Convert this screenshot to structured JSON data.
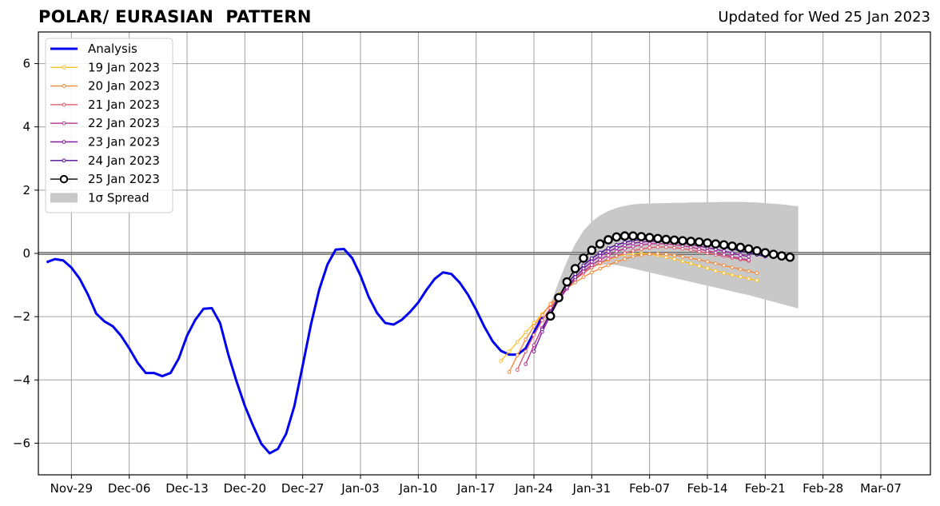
{
  "chart_data": {
    "type": "line",
    "title": "POLAR/ EURASIAN  PATTERN",
    "subtitle": "Updated for Wed 25 Jan 2023",
    "ylim": [
      -7,
      7
    ],
    "y_ticks": [
      -6,
      -4,
      -2,
      0,
      2,
      4,
      6
    ],
    "y_tick_labels": [
      "−6",
      "−4",
      "−2",
      "0",
      "2",
      "4",
      "6"
    ],
    "x_start": "2023-11-25",
    "x_end": "2024-03-13",
    "x_ticks": [
      {
        "date": "2022-11-29",
        "label": "Nov-29"
      },
      {
        "date": "2022-12-06",
        "label": "Dec-06"
      },
      {
        "date": "2022-12-13",
        "label": "Dec-13"
      },
      {
        "date": "2022-12-20",
        "label": "Dec-20"
      },
      {
        "date": "2022-12-27",
        "label": "Dec-27"
      },
      {
        "date": "2023-01-03",
        "label": "Jan-03"
      },
      {
        "date": "2023-01-10",
        "label": "Jan-10"
      },
      {
        "date": "2023-01-17",
        "label": "Jan-17"
      },
      {
        "date": "2023-01-24",
        "label": "Jan-24"
      },
      {
        "date": "2023-01-31",
        "label": "Jan-31"
      },
      {
        "date": "2023-02-07",
        "label": "Feb-07"
      },
      {
        "date": "2023-02-14",
        "label": "Feb-14"
      },
      {
        "date": "2023-02-21",
        "label": "Feb-21"
      },
      {
        "date": "2023-02-28",
        "label": "Feb-28"
      },
      {
        "date": "2023-03-07",
        "label": "Mar-07"
      }
    ],
    "legend_position": "upper-left",
    "legend": [
      {
        "label": "Analysis",
        "color": "#0000ee",
        "kind": "line"
      },
      {
        "label": "19 Jan 2023",
        "color": "#fcc12b",
        "kind": "marker"
      },
      {
        "label": "20 Jan 2023",
        "color": "#f48a3c",
        "kind": "marker"
      },
      {
        "label": "21 Jan 2023",
        "color": "#df5a6c",
        "kind": "marker"
      },
      {
        "label": "22 Jan 2023",
        "color": "#b8348e",
        "kind": "marker"
      },
      {
        "label": "23 Jan 2023",
        "color": "#8a1aa4",
        "kind": "marker"
      },
      {
        "label": "24 Jan 2023",
        "color": "#4f0a96",
        "kind": "marker"
      },
      {
        "label": "25 Jan 2023",
        "color": "#000000",
        "kind": "circle"
      },
      {
        "label": "1σ Spread",
        "color": "#c8c8c8",
        "kind": "patch"
      }
    ],
    "analysis": {
      "name": "Analysis",
      "color": "#0000ee",
      "start_date": "2022-11-26",
      "values": [
        -0.28,
        -0.18,
        -0.22,
        -0.45,
        -0.8,
        -1.3,
        -1.9,
        -2.15,
        -2.3,
        -2.6,
        -3.0,
        -3.45,
        -3.78,
        -3.78,
        -3.88,
        -3.78,
        -3.32,
        -2.6,
        -2.1,
        -1.75,
        -1.73,
        -2.2,
        -3.2,
        -4.05,
        -4.82,
        -5.45,
        -6.02,
        -6.32,
        -6.18,
        -5.7,
        -4.82,
        -3.55,
        -2.25,
        -1.15,
        -0.35,
        0.12,
        0.14,
        -0.15,
        -0.7,
        -1.38,
        -1.88,
        -2.2,
        -2.25,
        -2.1,
        -1.85,
        -1.55,
        -1.15,
        -0.8,
        -0.6,
        -0.65,
        -0.92,
        -1.3,
        -1.78,
        -2.32,
        -2.78,
        -3.08,
        -3.2,
        -3.2,
        -3.0,
        -2.5,
        -2.0
      ]
    },
    "forecasts": [
      {
        "name": "19 Jan 2023",
        "color": "#fcc12b",
        "start_date": "2023-01-20",
        "values": [
          -3.4,
          -3.1,
          -2.8,
          -2.5,
          -2.2,
          -1.92,
          -1.62,
          -1.3,
          -1.0,
          -0.78,
          -0.6,
          -0.45,
          -0.32,
          -0.2,
          -0.1,
          -0.04,
          -0.02,
          0.0,
          -0.02,
          -0.06,
          -0.12,
          -0.18,
          -0.25,
          -0.32,
          -0.4,
          -0.47,
          -0.55,
          -0.62,
          -0.68,
          -0.74,
          -0.8,
          -0.85
        ]
      },
      {
        "name": "20 Jan 2023",
        "color": "#f48a3c",
        "start_date": "2023-01-21",
        "values": [
          -3.75,
          -3.22,
          -2.72,
          -2.3,
          -1.95,
          -1.6,
          -1.32,
          -1.1,
          -0.92,
          -0.75,
          -0.6,
          -0.48,
          -0.37,
          -0.27,
          -0.18,
          -0.1,
          -0.05,
          -0.02,
          -0.01,
          -0.03,
          -0.06,
          -0.1,
          -0.15,
          -0.2,
          -0.26,
          -0.32,
          -0.38,
          -0.44,
          -0.5,
          -0.56,
          -0.62
        ]
      },
      {
        "name": "21 Jan 2023",
        "color": "#df5a6c",
        "start_date": "2023-01-22",
        "values": [
          -3.68,
          -3.1,
          -2.58,
          -2.12,
          -1.72,
          -1.38,
          -1.08,
          -0.82,
          -0.62,
          -0.44,
          -0.3,
          -0.18,
          -0.08,
          0.01,
          0.08,
          0.14,
          0.18,
          0.2,
          0.2,
          0.18,
          0.15,
          0.11,
          0.06,
          0.01,
          -0.04,
          -0.09,
          -0.14,
          -0.19,
          -0.24
        ]
      },
      {
        "name": "22 Jan 2023",
        "color": "#b8348e",
        "start_date": "2023-01-23",
        "values": [
          -3.5,
          -2.9,
          -2.35,
          -1.88,
          -1.48,
          -1.12,
          -0.82,
          -0.57,
          -0.37,
          -0.2,
          -0.06,
          0.06,
          0.15,
          0.22,
          0.27,
          0.3,
          0.31,
          0.3,
          0.28,
          0.24,
          0.2,
          0.14,
          0.08,
          0.02,
          -0.04,
          -0.1,
          -0.16,
          -0.21
        ]
      },
      {
        "name": "23 Jan 2023",
        "color": "#8a1aa4",
        "start_date": "2023-01-24",
        "values": [
          -3.1,
          -2.48,
          -1.95,
          -1.48,
          -1.08,
          -0.75,
          -0.48,
          -0.26,
          -0.08,
          0.06,
          0.17,
          0.26,
          0.32,
          0.36,
          0.38,
          0.38,
          0.37,
          0.35,
          0.32,
          0.28,
          0.23,
          0.18,
          0.13,
          0.07,
          0.01,
          -0.05,
          -0.1
        ]
      },
      {
        "name": "24 Jan 2023",
        "color": "#4f0a96",
        "start_date": "2023-01-25",
        "values": [
          -2.4,
          -1.85,
          -1.38,
          -0.98,
          -0.65,
          -0.38,
          -0.16,
          0.02,
          0.16,
          0.27,
          0.35,
          0.41,
          0.44,
          0.46,
          0.46,
          0.45,
          0.43,
          0.4,
          0.37,
          0.33,
          0.29,
          0.24,
          0.19,
          0.14,
          0.08,
          0.02,
          -0.04,
          -0.1
        ]
      },
      {
        "name": "25 Jan 2023",
        "color": "#000000",
        "start_date": "2023-01-26",
        "values": [
          -1.98,
          -1.4,
          -0.9,
          -0.48,
          -0.15,
          0.1,
          0.3,
          0.43,
          0.52,
          0.55,
          0.55,
          0.53,
          0.5,
          0.47,
          0.44,
          0.42,
          0.4,
          0.38,
          0.36,
          0.33,
          0.3,
          0.27,
          0.23,
          0.19,
          0.14,
          0.08,
          0.02,
          -0.03,
          -0.08,
          -0.12
        ]
      }
    ],
    "spread": {
      "name": "1σ Spread",
      "color": "#c8c8c8",
      "start_date": "2023-01-25",
      "upper": [
        -2.28,
        -1.6,
        -0.9,
        -0.25,
        0.3,
        0.72,
        1.0,
        1.2,
        1.34,
        1.44,
        1.5,
        1.55,
        1.57,
        1.58,
        1.59,
        1.59,
        1.6,
        1.6,
        1.61,
        1.61,
        1.62,
        1.62,
        1.63,
        1.63,
        1.63,
        1.62,
        1.61,
        1.59,
        1.57,
        1.55,
        1.52,
        1.49
      ],
      "lower": [
        -2.3,
        -1.82,
        -1.4,
        -1.05,
        -0.78,
        -0.58,
        -0.45,
        -0.37,
        -0.35,
        -0.37,
        -0.42,
        -0.48,
        -0.54,
        -0.6,
        -0.66,
        -0.72,
        -0.78,
        -0.84,
        -0.9,
        -0.96,
        -1.02,
        -1.08,
        -1.14,
        -1.2,
        -1.26,
        -1.32,
        -1.39,
        -1.46,
        -1.53,
        -1.6,
        -1.67,
        -1.74
      ]
    }
  }
}
